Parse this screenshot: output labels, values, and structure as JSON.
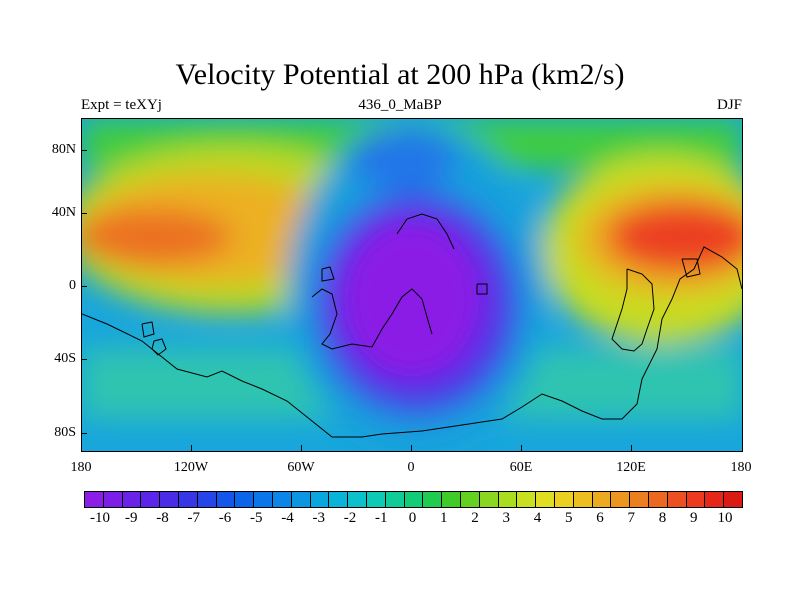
{
  "title": "Velocity Potential at 200 hPa (km2/s)",
  "subtitle_left": "Expt = teXYj",
  "subtitle_center": "436_0_MaBP",
  "subtitle_right": "DJF",
  "lat_labels": [
    "80N",
    "40N",
    "0",
    "40S",
    "80S"
  ],
  "lon_labels": [
    "180",
    "120W",
    "60W",
    "0",
    "60E",
    "120E",
    "180"
  ],
  "colorbar_labels": [
    "-10",
    "-9",
    "-8",
    "-7",
    "-6",
    "-5",
    "-4",
    "-3",
    "-2",
    "-1",
    "0",
    "1",
    "2",
    "3",
    "4",
    "5",
    "6",
    "7",
    "8",
    "9",
    "10"
  ],
  "colorbar_colors": [
    "#8a1de6",
    "#7b1ee6",
    "#6a22e8",
    "#5b26ea",
    "#4a2be6",
    "#3736e6",
    "#2545e8",
    "#1455ea",
    "#0b65ea",
    "#0b75ea",
    "#0b86e8",
    "#0b96e2",
    "#0aa6de",
    "#0ab4d8",
    "#0cc0cc",
    "#0ccab6",
    "#10cc98",
    "#14cc78",
    "#20cc50",
    "#40cc28",
    "#64d020",
    "#8ad620",
    "#aadc20",
    "#c8e020",
    "#e0de20",
    "#ecd020",
    "#ecbe20",
    "#ecaa20",
    "#ec9620",
    "#ec8020",
    "#ec6820",
    "#ec5020",
    "#ec3a20",
    "#e62618",
    "#dc1a14"
  ],
  "map_gradient_colors": {
    "purple": "#8a2be6",
    "blue": "#2c46e6",
    "cyan": "#1aa4dc",
    "green": "#3cc84a",
    "yellow": "#d8dc20",
    "orange": "#ec9020",
    "red": "#e63a18"
  }
}
